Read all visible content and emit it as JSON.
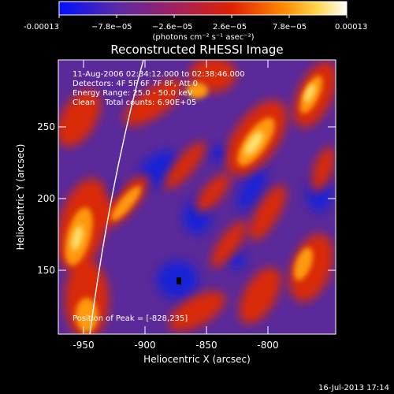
{
  "colorbar": {
    "tick_labels": [
      "-0.00013",
      "−7.8e−05",
      "−2.6e−05",
      "2.6e−05",
      "7.8e−05",
      "0.00013"
    ],
    "unit_label": "(photons cm⁻² s⁻¹ asec⁻²)",
    "colors": [
      "#0010ff",
      "#5a2aa8",
      "#a02060",
      "#e02000",
      "#ff8a00",
      "#ffd850",
      "#ffffff"
    ]
  },
  "image": {
    "title": "Reconstructed RHESSI Image",
    "info_lines": [
      "11-Aug-2006 02:34:12.000 to 02:38:46.000",
      "Detectors: 4F 5F 6F 7F 8F, Att 0",
      "Energy Range: 25.0 - 50.0 keV",
      "Clean    Total counts: 6.90E+05"
    ],
    "peak_label": "Position of Peak = [-828,235]",
    "x_ticks": [
      "-950",
      "-900",
      "-850",
      "-800"
    ],
    "y_ticks": [
      "150",
      "200",
      "250"
    ],
    "x_axis_label": "Heliocentric X (arcsec)",
    "y_axis_label": "Heliocentric Y (arcsec)"
  },
  "footer": {
    "timestamp": "16-Jul-2013 17:14"
  }
}
